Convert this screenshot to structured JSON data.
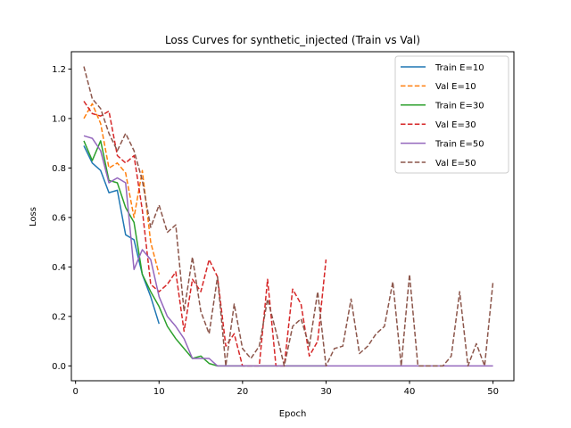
{
  "chart_data": {
    "type": "line",
    "title": "Loss Curves for synthetic_injected (Train vs Val)",
    "xlabel": "Epoch",
    "ylabel": "Loss",
    "xlim": [
      -0.5,
      52.5
    ],
    "ylim": [
      -0.06,
      1.27
    ],
    "xticks": [
      0,
      10,
      20,
      30,
      40,
      50
    ],
    "yticks": [
      0.0,
      0.2,
      0.4,
      0.6,
      0.8,
      1.0,
      1.2
    ],
    "xtick_labels": [
      "0",
      "10",
      "20",
      "30",
      "40",
      "50"
    ],
    "ytick_labels": [
      "0.0",
      "0.2",
      "0.4",
      "0.6",
      "0.8",
      "1.0",
      "1.2"
    ],
    "grid": false,
    "legend_position": "top-right",
    "series": [
      {
        "name": "Train E=10",
        "color": "#1f77b4",
        "dash": "solid",
        "x": [
          1,
          2,
          3,
          4,
          5,
          6,
          7,
          8,
          9,
          10
        ],
        "y": [
          0.89,
          0.82,
          0.79,
          0.7,
          0.71,
          0.53,
          0.51,
          0.37,
          0.28,
          0.17
        ]
      },
      {
        "name": "Val E=10",
        "color": "#ff7f0e",
        "dash": "dashed",
        "x": [
          1,
          2,
          3,
          4,
          5,
          6,
          7,
          8,
          9,
          10
        ],
        "y": [
          1.0,
          1.06,
          0.98,
          0.8,
          0.82,
          0.78,
          0.6,
          0.79,
          0.5,
          0.37
        ]
      },
      {
        "name": "Train E=30",
        "color": "#2ca02c",
        "dash": "solid",
        "x": [
          1,
          2,
          3,
          4,
          5,
          6,
          7,
          8,
          9,
          10,
          11,
          12,
          13,
          14,
          15,
          16,
          17,
          18,
          19,
          20,
          21,
          22,
          23,
          24,
          25,
          26,
          27,
          28,
          29,
          30
        ],
        "y": [
          0.91,
          0.83,
          0.91,
          0.75,
          0.74,
          0.64,
          0.58,
          0.37,
          0.3,
          0.24,
          0.16,
          0.11,
          0.07,
          0.03,
          0.04,
          0.01,
          0.0,
          0.0,
          0.0,
          0.0,
          0.0,
          0.0,
          0.0,
          0.0,
          0.0,
          0.0,
          0.0,
          0.0,
          0.0,
          0.0
        ]
      },
      {
        "name": "Val E=30",
        "color": "#d62728",
        "dash": "dashed",
        "x": [
          1,
          2,
          3,
          4,
          5,
          6,
          7,
          8,
          9,
          10,
          11,
          12,
          13,
          14,
          15,
          16,
          17,
          18,
          19,
          20,
          21,
          22,
          23,
          24,
          25,
          26,
          27,
          28,
          29,
          30
        ],
        "y": [
          1.07,
          1.02,
          1.01,
          1.03,
          0.85,
          0.82,
          0.85,
          0.63,
          0.33,
          0.3,
          0.33,
          0.38,
          0.14,
          0.35,
          0.3,
          0.43,
          0.36,
          0.08,
          0.13,
          0.0,
          0.0,
          0.0,
          0.35,
          0.0,
          0.0,
          0.31,
          0.25,
          0.04,
          0.1,
          0.43
        ]
      },
      {
        "name": "Train E=50",
        "color": "#9467bd",
        "dash": "solid",
        "x": [
          1,
          2,
          3,
          4,
          5,
          6,
          7,
          8,
          9,
          10,
          11,
          12,
          13,
          14,
          15,
          16,
          17,
          18,
          19,
          20,
          21,
          22,
          23,
          24,
          25,
          26,
          27,
          28,
          29,
          30,
          31,
          32,
          33,
          34,
          35,
          36,
          37,
          38,
          39,
          40,
          41,
          42,
          43,
          44,
          45,
          46,
          47,
          48,
          49,
          50
        ],
        "y": [
          0.93,
          0.92,
          0.87,
          0.74,
          0.76,
          0.74,
          0.39,
          0.47,
          0.43,
          0.28,
          0.2,
          0.16,
          0.11,
          0.03,
          0.03,
          0.03,
          0.0,
          0.0,
          0.0,
          0.0,
          0.0,
          0.0,
          0.0,
          0.0,
          0.0,
          0.0,
          0.0,
          0.0,
          0.0,
          0.0,
          0.0,
          0.0,
          0.0,
          0.0,
          0.0,
          0.0,
          0.0,
          0.0,
          0.0,
          0.0,
          0.0,
          0.0,
          0.0,
          0.0,
          0.0,
          0.0,
          0.0,
          0.0,
          0.0,
          0.0
        ]
      },
      {
        "name": "Val E=50",
        "color": "#8c564b",
        "dash": "dashed",
        "x": [
          1,
          2,
          3,
          4,
          5,
          6,
          7,
          8,
          9,
          10,
          11,
          12,
          13,
          14,
          15,
          16,
          17,
          18,
          19,
          20,
          21,
          22,
          23,
          24,
          25,
          26,
          27,
          28,
          29,
          30,
          31,
          32,
          33,
          34,
          35,
          36,
          37,
          38,
          39,
          40,
          41,
          42,
          43,
          44,
          45,
          46,
          47,
          48,
          49,
          50
        ],
        "y": [
          1.21,
          1.08,
          1.04,
          0.94,
          0.87,
          0.94,
          0.87,
          0.75,
          0.56,
          0.65,
          0.54,
          0.57,
          0.22,
          0.44,
          0.22,
          0.13,
          0.36,
          0.0,
          0.25,
          0.07,
          0.03,
          0.08,
          0.27,
          0.14,
          0.0,
          0.16,
          0.19,
          0.08,
          0.3,
          0.0,
          0.07,
          0.08,
          0.27,
          0.05,
          0.08,
          0.13,
          0.16,
          0.34,
          0.0,
          0.37,
          0.0,
          0.0,
          0.0,
          0.0,
          0.04,
          0.3,
          0.0,
          0.09,
          0.0,
          0.34
        ]
      }
    ]
  }
}
